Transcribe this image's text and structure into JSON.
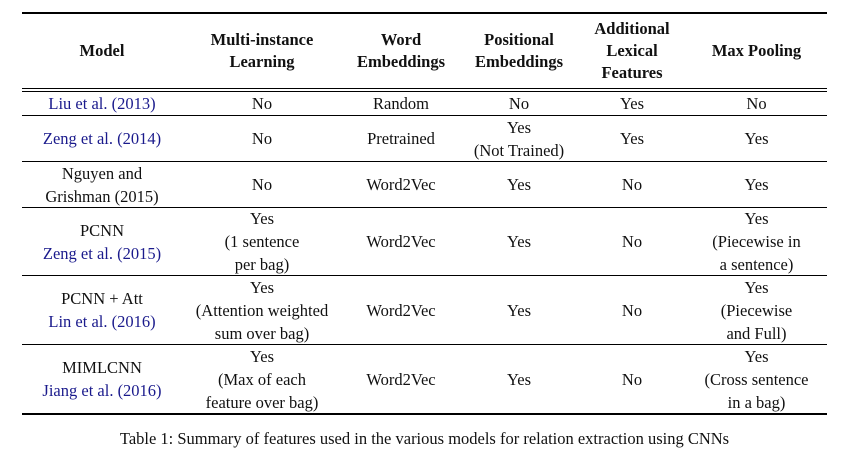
{
  "header": {
    "model": "Model",
    "mil": [
      "Multi-instance",
      "Learning"
    ],
    "word": [
      "Word",
      "Embeddings"
    ],
    "pos": [
      "Positional",
      "Embeddings"
    ],
    "lex": [
      "Additional",
      "Lexical",
      "Features"
    ],
    "maxpool": "Max Pooling"
  },
  "rows": [
    {
      "model": [],
      "cite": "Liu et al. (2013)",
      "mil": [
        "No"
      ],
      "word": "Random",
      "pos": [
        "No"
      ],
      "lex": "Yes",
      "maxpool": [
        "No"
      ]
    },
    {
      "model": [],
      "cite": "Zeng et al. (2014)",
      "mil": [
        "No"
      ],
      "word": "Pretrained",
      "pos": [
        "Yes",
        "(Not Trained)"
      ],
      "lex": "Yes",
      "maxpool": [
        "Yes"
      ]
    },
    {
      "model": [
        "Nguyen and",
        "Grishman (2015)"
      ],
      "cite": "",
      "mil": [
        "No"
      ],
      "word": "Word2Vec",
      "pos": [
        "Yes"
      ],
      "lex": "No",
      "maxpool": [
        "Yes"
      ]
    },
    {
      "model": [
        "PCNN"
      ],
      "cite": "Zeng et al. (2015)",
      "mil": [
        "Yes",
        "(1 sentence",
        "per bag)"
      ],
      "word": "Word2Vec",
      "pos": [
        "Yes"
      ],
      "lex": "No",
      "maxpool": [
        "Yes",
        "(Piecewise in",
        "a sentence)"
      ]
    },
    {
      "model": [
        "PCNN + Att"
      ],
      "cite": "Lin et al. (2016)",
      "mil": [
        "Yes",
        "(Attention weighted",
        "sum over bag)"
      ],
      "word": "Word2Vec",
      "pos": [
        "Yes"
      ],
      "lex": "No",
      "maxpool": [
        "Yes",
        "(Piecewise",
        "and Full)"
      ]
    },
    {
      "model": [
        "MIMLCNN"
      ],
      "cite": "Jiang et al. (2016)",
      "mil": [
        "Yes",
        "(Max of each",
        "feature over bag)"
      ],
      "word": "Word2Vec",
      "pos": [
        "Yes"
      ],
      "lex": "No",
      "maxpool": [
        "Yes",
        "(Cross sentence",
        "in a bag)"
      ]
    }
  ],
  "caption": "Table 1: Summary of features used in the various models for relation extraction using CNNs"
}
